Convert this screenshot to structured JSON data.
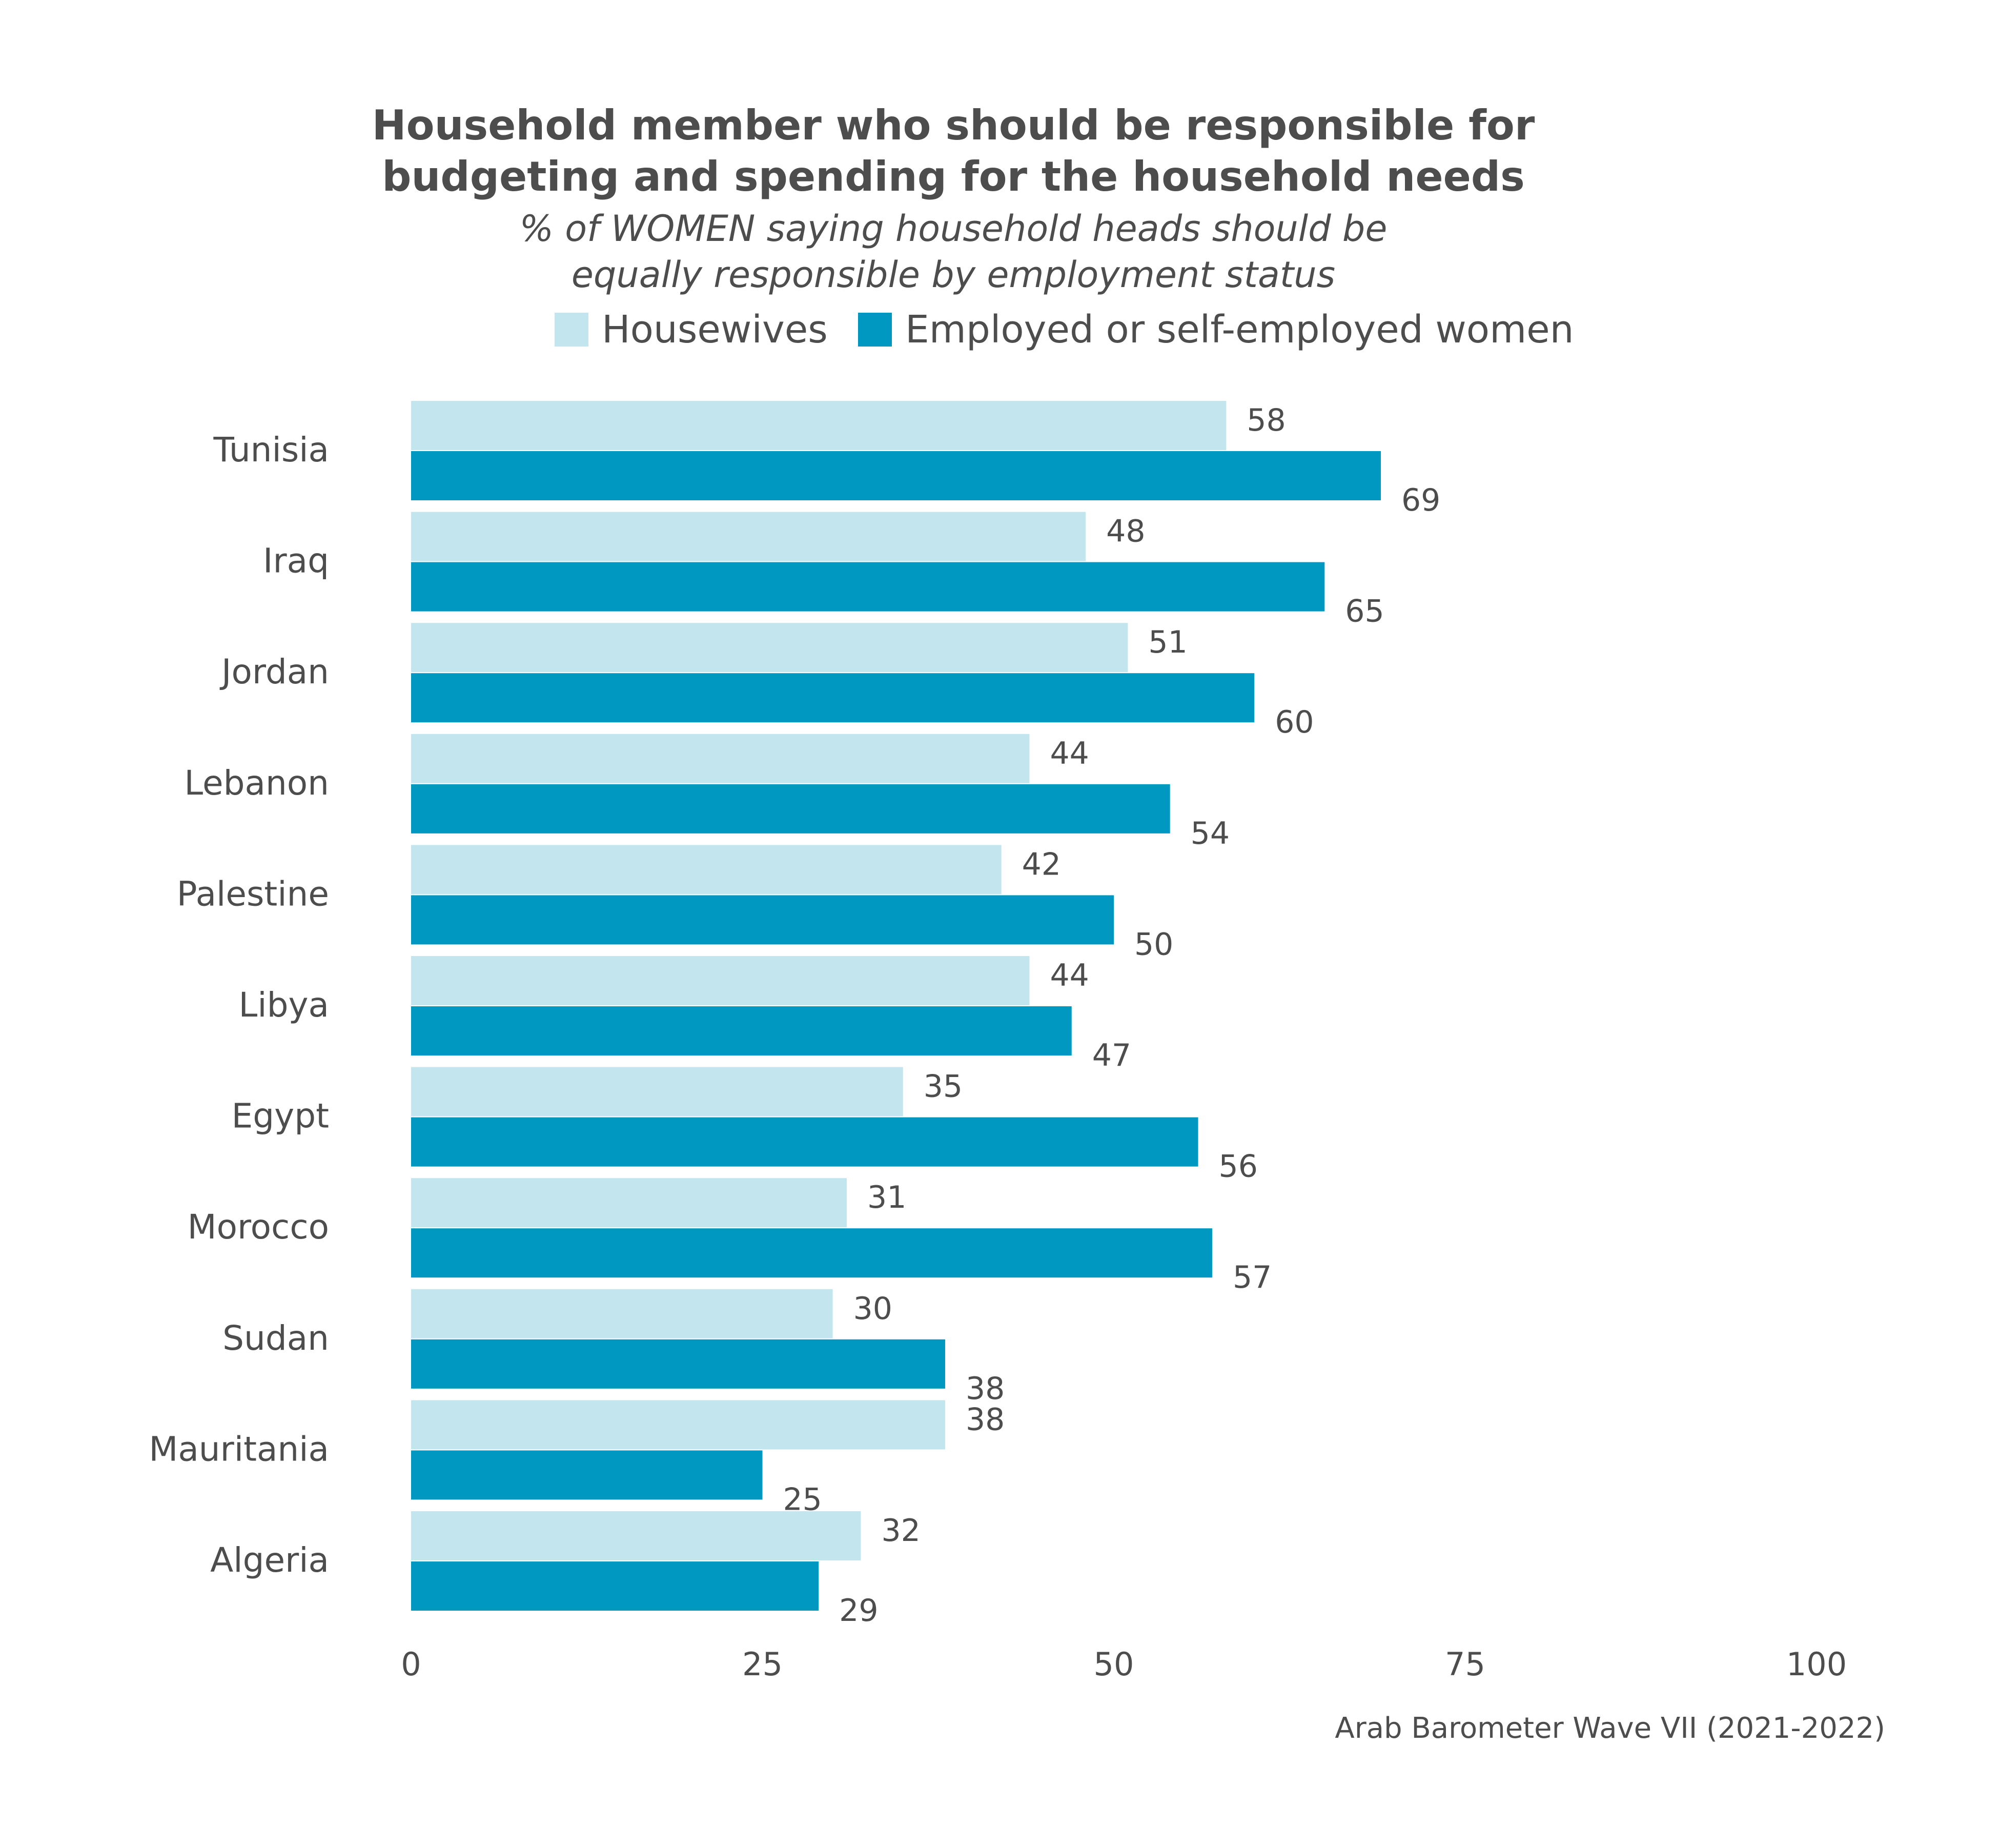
{
  "chart_data": {
    "type": "bar",
    "orientation": "horizontal",
    "title": [
      "Household member who should be responsible for",
      "budgeting and spending for the household needs"
    ],
    "subtitle": [
      "% of WOMEN saying household heads should be",
      "equally responsible by employment status"
    ],
    "caption": "Arab Barometer Wave VII (2021-2022)",
    "categories": [
      "Tunisia",
      "Iraq",
      "Jordan",
      "Lebanon",
      "Palestine",
      "Libya",
      "Egypt",
      "Morocco",
      "Sudan",
      "Mauritania",
      "Algeria"
    ],
    "series": [
      {
        "name": "Housewives",
        "color": "#c2e5ee",
        "values": [
          58,
          48,
          51,
          44,
          42,
          44,
          35,
          31,
          30,
          38,
          32
        ]
      },
      {
        "name": "Employed or self-employed women",
        "color": "#0098c0",
        "values": [
          69,
          65,
          60,
          54,
          50,
          47,
          56,
          57,
          38,
          25,
          29
        ]
      }
    ],
    "xlim": [
      0,
      100
    ],
    "xticks": [
      0,
      25,
      50,
      75,
      100
    ],
    "legend_position": "top",
    "grid": false,
    "data_labels": true
  }
}
